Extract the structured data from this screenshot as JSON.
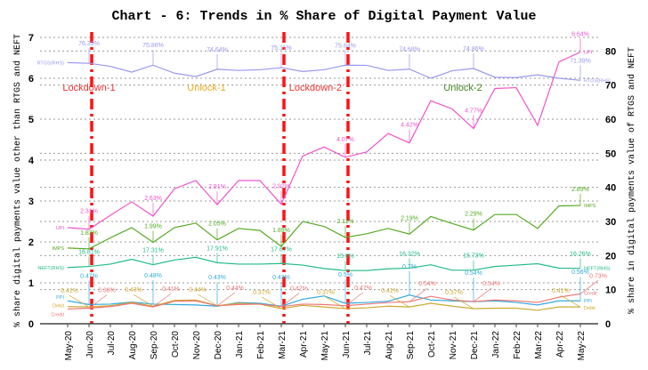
{
  "chart_data": {
    "type": "line",
    "title": "Chart - 6: Trends in % Share of Digital Payment Value",
    "ylabel": "% share digital payments value other than RTGS and NEFT",
    "y2label": "% share in digital payments value of RTGS and NEFT",
    "ylim": [
      0,
      7
    ],
    "y2lim": [
      0,
      84
    ],
    "yticks": [
      "0",
      "1",
      "2",
      "3",
      "4",
      "5",
      "6",
      "7"
    ],
    "y2ticks": [
      "0",
      "10",
      "20",
      "30",
      "40",
      "50",
      "60",
      "70",
      "80"
    ],
    "x": [
      "May-20",
      "Jun-20",
      "Jul-20",
      "Aug-20",
      "Sep-20",
      "Oct-20",
      "Nov-20",
      "Dec-20",
      "Jan-21",
      "Feb-21",
      "Mar-21",
      "Apr-21",
      "May-21",
      "Jun-21",
      "Jul-21",
      "Aug-21",
      "Sep-21",
      "Oct-21",
      "Nov-21",
      "Dec-21",
      "Jan-22",
      "Feb-22",
      "Mar-22",
      "Apr-22",
      "May-22"
    ],
    "series": [
      {
        "name": "UPI",
        "axis": "left",
        "color": "#ee55cc",
        "start_label": "UPI",
        "end_label": "UPI",
        "values": [
          2.35,
          2.31,
          2.65,
          2.98,
          2.63,
          3.3,
          3.5,
          2.91,
          3.5,
          3.5,
          2.92,
          4.1,
          4.32,
          4.07,
          4.2,
          4.65,
          4.42,
          5.45,
          5.25,
          4.77,
          5.75,
          5.77,
          4.85,
          6.4,
          6.64
        ]
      },
      {
        "name": "RTGS",
        "axis": "right",
        "color": "#9999ee",
        "start_label": "RTGS(RHS)",
        "end_label": "RTGS(RHS)",
        "values": [
          76.6,
          76.39,
          75.5,
          73.8,
          75.86,
          73.5,
          72.5,
          74.64,
          74.3,
          74.5,
          75.11,
          74.0,
          74.5,
          75.84,
          75.8,
          74.3,
          74.68,
          72.0,
          74.2,
          74.86,
          72.3,
          72.2,
          73.0,
          72.0,
          71.39
        ]
      },
      {
        "name": "IMPS",
        "axis": "left",
        "color": "#55aa22",
        "start_label": "IMPS",
        "end_label": "IMPS",
        "values": [
          1.85,
          1.83,
          2.1,
          2.35,
          1.99,
          2.35,
          2.46,
          2.05,
          2.33,
          2.28,
          1.89,
          2.5,
          2.38,
          2.11,
          2.2,
          2.33,
          2.19,
          2.62,
          2.45,
          2.29,
          2.67,
          2.67,
          2.33,
          2.88,
          2.89
        ]
      },
      {
        "name": "NEFT",
        "axis": "right",
        "color": "#22bb88",
        "start_label": "NEFT(RHS)",
        "end_label": "NEFT(RHS)",
        "values": [
          16.5,
          16.81,
          17.5,
          18.9,
          17.31,
          18.7,
          19.5,
          17.91,
          17.5,
          17.5,
          17.67,
          17.2,
          16.2,
          15.6,
          15.6,
          16.1,
          16.32,
          17.3,
          15.7,
          15.73,
          16.8,
          17.2,
          17.6,
          16.3,
          16.26
        ]
      },
      {
        "name": "PPI",
        "axis": "left",
        "color": "#33aadd",
        "start_label": "PPI",
        "end_label": "PPI",
        "values": [
          0.56,
          0.47,
          0.48,
          0.53,
          0.48,
          0.47,
          0.46,
          0.43,
          0.52,
          0.5,
          0.43,
          0.6,
          0.68,
          0.5,
          0.52,
          0.55,
          0.7,
          0.58,
          0.56,
          0.54,
          0.56,
          0.52,
          0.46,
          0.56,
          0.56
        ]
      },
      {
        "name": "Debit",
        "axis": "left",
        "color": "#ccaa33",
        "start_label": "Debit",
        "end_label": "Debit",
        "values": [
          0.42,
          0.41,
          0.44,
          0.52,
          0.43,
          0.57,
          0.58,
          0.44,
          0.5,
          0.48,
          0.37,
          0.45,
          0.41,
          0.37,
          0.39,
          0.43,
          0.41,
          0.5,
          0.43,
          0.37,
          0.38,
          0.38,
          0.33,
          0.41,
          0.41
        ]
      },
      {
        "name": "Credit",
        "axis": "left",
        "color": "#ee7777",
        "start_label": "Credit",
        "end_label": "Credit",
        "values": [
          0.36,
          0.38,
          0.42,
          0.5,
          0.41,
          0.55,
          0.56,
          0.44,
          0.47,
          0.48,
          0.42,
          0.48,
          0.47,
          0.44,
          0.48,
          0.52,
          0.54,
          0.67,
          0.58,
          0.54,
          0.58,
          0.56,
          0.52,
          0.65,
          0.73
        ]
      }
    ],
    "annotations": [
      {
        "series": "RTGS",
        "i": 1,
        "text": "76.39%"
      },
      {
        "series": "RTGS",
        "i": 4,
        "text": "75.86%"
      },
      {
        "series": "RTGS",
        "i": 7,
        "text": "74.64%"
      },
      {
        "series": "RTGS",
        "i": 10,
        "text": "75.11%"
      },
      {
        "series": "RTGS",
        "i": 13,
        "text": "75.84%"
      },
      {
        "series": "RTGS",
        "i": 16,
        "text": "74.68%"
      },
      {
        "series": "RTGS",
        "i": 19,
        "text": "74.86%"
      },
      {
        "series": "RTGS",
        "i": 24,
        "text": "71.39%"
      },
      {
        "series": "UPI",
        "i": 1,
        "text": "2.31%"
      },
      {
        "series": "UPI",
        "i": 4,
        "text": "2.63%"
      },
      {
        "series": "UPI",
        "i": 7,
        "text": "2.91%"
      },
      {
        "series": "UPI",
        "i": 10,
        "text": "2.92%"
      },
      {
        "series": "UPI",
        "i": 13,
        "text": "4.07%"
      },
      {
        "series": "UPI",
        "i": 16,
        "text": "4.42%"
      },
      {
        "series": "UPI",
        "i": 19,
        "text": "4.77%"
      },
      {
        "series": "UPI",
        "i": 24,
        "text": "6.64%"
      },
      {
        "series": "IMPS",
        "i": 1,
        "text": "1.83%"
      },
      {
        "series": "IMPS",
        "i": 4,
        "text": "1.99%"
      },
      {
        "series": "IMPS",
        "i": 7,
        "text": "2.05%"
      },
      {
        "series": "IMPS",
        "i": 10,
        "text": "1.89%"
      },
      {
        "series": "IMPS",
        "i": 13,
        "text": "2.11%"
      },
      {
        "series": "IMPS",
        "i": 16,
        "text": "2.19%"
      },
      {
        "series": "IMPS",
        "i": 19,
        "text": "2.29%"
      },
      {
        "series": "IMPS",
        "i": 24,
        "text": "2.89%"
      },
      {
        "series": "NEFT",
        "i": 1,
        "text": "16.81%"
      },
      {
        "series": "NEFT",
        "i": 4,
        "text": "17.31%"
      },
      {
        "series": "NEFT",
        "i": 7,
        "text": "17.91%"
      },
      {
        "series": "NEFT",
        "i": 10,
        "text": "17.67%"
      },
      {
        "series": "NEFT",
        "i": 13,
        "text": "15.6%"
      },
      {
        "series": "NEFT",
        "i": 16,
        "text": "16.32%"
      },
      {
        "series": "NEFT",
        "i": 19,
        "text": "15.73%"
      },
      {
        "series": "NEFT",
        "i": 24,
        "text": "16.26%"
      },
      {
        "series": "PPI",
        "i": 1,
        "text": "0.47%"
      },
      {
        "series": "PPI",
        "i": 4,
        "text": "0.48%"
      },
      {
        "series": "PPI",
        "i": 7,
        "text": "0.43%"
      },
      {
        "series": "PPI",
        "i": 10,
        "text": "0.43%"
      },
      {
        "series": "PPI",
        "i": 13,
        "text": "0.5%"
      },
      {
        "series": "PPI",
        "i": 16,
        "text": "0.7%"
      },
      {
        "series": "PPI",
        "i": 19,
        "text": "0.54%"
      },
      {
        "series": "PPI",
        "i": 24,
        "text": "0.56%"
      },
      {
        "series": "Debit",
        "i": 1,
        "text": "0.41%"
      },
      {
        "series": "Debit",
        "i": 4,
        "text": "0.43%"
      },
      {
        "series": "Debit",
        "i": 7,
        "text": "0.44%"
      },
      {
        "series": "Debit",
        "i": 10,
        "text": "0.37%"
      },
      {
        "series": "Debit",
        "i": 13,
        "text": "0.37%"
      },
      {
        "series": "Debit",
        "i": 16,
        "text": "0.41%"
      },
      {
        "series": "Debit",
        "i": 19,
        "text": "0.37%"
      },
      {
        "series": "Debit",
        "i": 24,
        "text": "0.41%"
      },
      {
        "series": "Credit",
        "i": 1,
        "text": "0.38%"
      },
      {
        "series": "Credit",
        "i": 4,
        "text": "0.41%"
      },
      {
        "series": "Credit",
        "i": 7,
        "text": "0.44%"
      },
      {
        "series": "Credit",
        "i": 10,
        "text": "0.42%"
      },
      {
        "series": "Credit",
        "i": 13,
        "text": "0.47%"
      },
      {
        "series": "Credit",
        "i": 16,
        "text": "0.54%"
      },
      {
        "series": "Credit",
        "i": 19,
        "text": "0.54%"
      },
      {
        "series": "Credit",
        "i": 24,
        "text": "0.73%"
      }
    ],
    "phase_lines": [
      "Jun-20",
      "Mar-21",
      "Jun-21"
    ],
    "phases": [
      {
        "label": "Lockdown-1",
        "color": "#ee3333",
        "at": 1
      },
      {
        "label": "Unlock-1",
        "color": "#eeaa22",
        "at": 6.5
      },
      {
        "label": "Lockdown-2",
        "color": "#ee3333",
        "at": 11.6
      },
      {
        "label": "Unlock-2",
        "color": "#448822",
        "at": 18.5
      }
    ],
    "grid": true
  }
}
